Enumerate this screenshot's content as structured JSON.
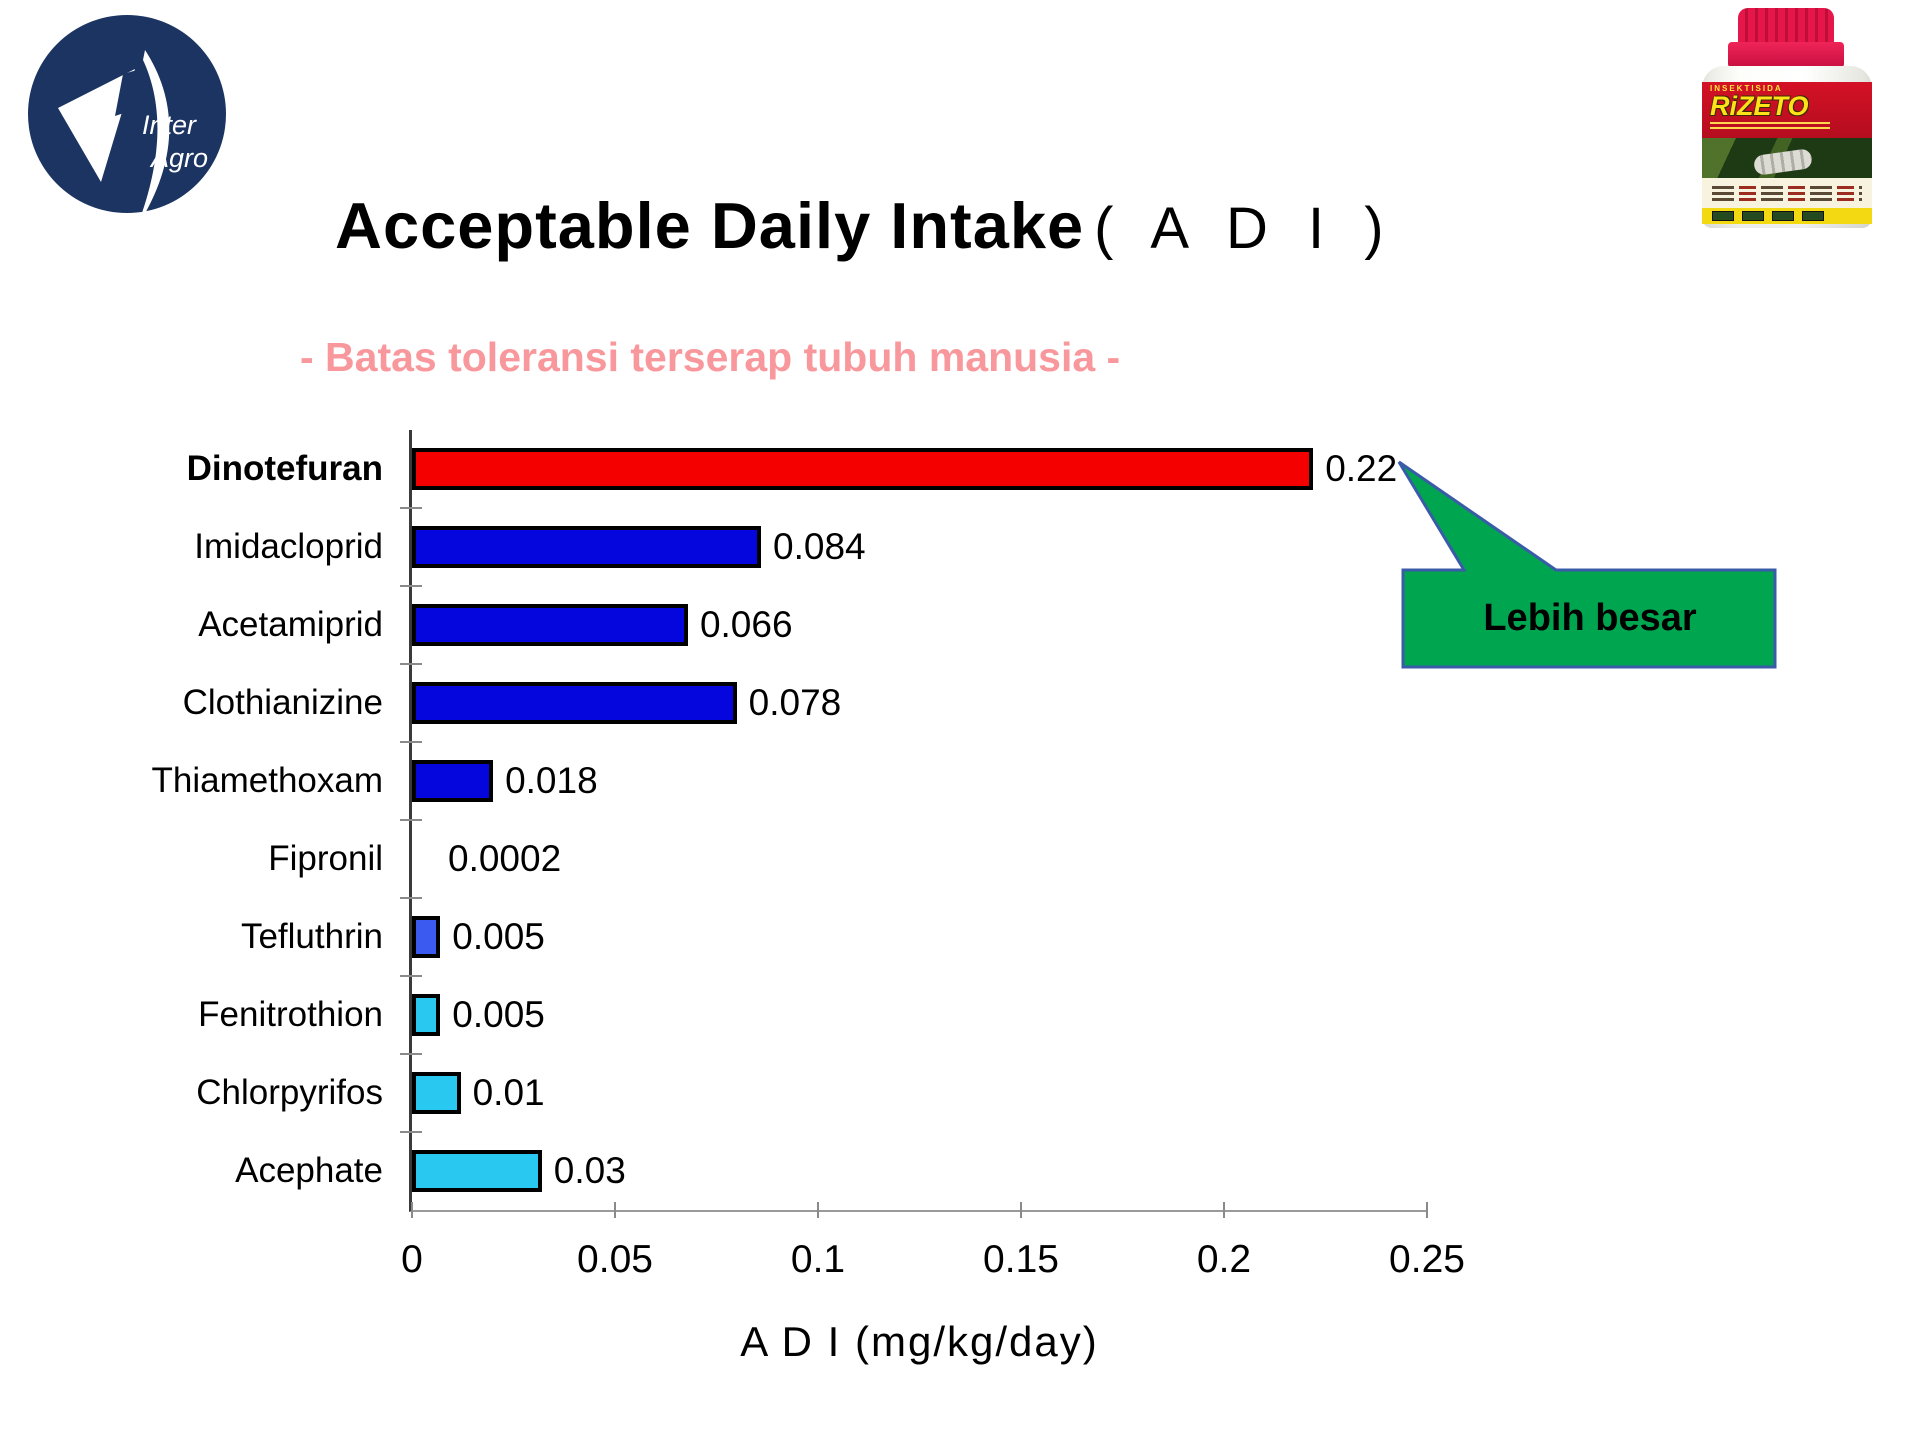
{
  "logo": {
    "line1": "Inter",
    "line2": "Agro",
    "circle_color": "#1b3462"
  },
  "product": {
    "label_top": "INSEKTISIDA",
    "brand": "RiZETO"
  },
  "title": {
    "main": "Acceptable Daily Intake",
    "paren": "( A D I )"
  },
  "subtitle": {
    "text": "- Batas toleransi terserap tubuh manusia -",
    "color": "#f9989c"
  },
  "callout": {
    "text": "Lebih besar",
    "fill": "#00a550",
    "border": "#3a5ca8"
  },
  "chart_data": {
    "type": "bar",
    "orientation": "horizontal",
    "title": "Acceptable Daily Intake (ADI)",
    "xlabel": "A D I (mg/kg/day)",
    "xlim": [
      0,
      0.25
    ],
    "xticks": [
      0,
      0.05,
      0.1,
      0.15,
      0.2,
      0.25
    ],
    "xtick_labels": [
      "0",
      "0.05",
      "0.1",
      "0.15",
      "0.2",
      "0.25"
    ],
    "grid": false,
    "legend": false,
    "categories": [
      "Dinotefuran",
      "Imidacloprid",
      "Acetamiprid",
      "Clothianizine",
      "Thiamethoxam",
      "Fipronil",
      "Tefluthrin",
      "Fenitrothion",
      "Chlorpyrifos",
      "Acephate"
    ],
    "values": [
      0.22,
      0.084,
      0.066,
      0.078,
      0.018,
      0.0002,
      0.005,
      0.005,
      0.01,
      0.03
    ],
    "value_labels": [
      "0.22",
      "0.084",
      "0.066",
      "0.078",
      "0.018",
      "0.0002",
      "0.005",
      "0.005",
      "0.01",
      "0.03"
    ],
    "bar_colors": [
      "#f40000",
      "#0505dd",
      "#0505dd",
      "#0505dd",
      "#0505dd",
      "#0505dd",
      "#3a5af0",
      "#28c8f0",
      "#28c8f0",
      "#28c8f0"
    ],
    "highlight_category": "Dinotefuran",
    "annotations": [
      {
        "text": "Lebih besar",
        "target": "Dinotefuran"
      }
    ]
  }
}
